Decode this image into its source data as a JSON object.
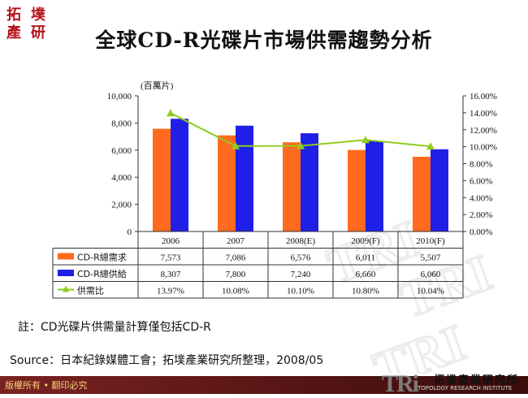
{
  "logo": {
    "chars": [
      "拓",
      "墣",
      "產",
      "研"
    ]
  },
  "title": "全球CD-R光碟片市場供需趨勢分析",
  "watermark": "TRI",
  "note": "註：CD光碟片供需量計算僅包括CD-R",
  "source": "Source：日本紀錄媒體工會；拓墣產業研究所整理，2008/05",
  "footer": {
    "left_text": "版權所有 • 翻印必究",
    "brand_logo": "TRi",
    "brand_name": "拓墣產業研究所",
    "brand_sub": "TOPOLOGY RESEARCH INSTITUTE"
  },
  "colors": {
    "demand": "#ff6a1e",
    "supply": "#1f1fe8",
    "ratio": "#8fcc1e",
    "footer": "#6a1a1a",
    "logo": "#b5121b"
  },
  "chart_data": {
    "type": "bar",
    "unit_label": "(百萬片)",
    "categories": [
      "2006",
      "2007",
      "2008(E)",
      "2009(F)",
      "2010(F)"
    ],
    "series": [
      {
        "name": "CD-R總需求",
        "kind": "bar",
        "values": [
          7573,
          7086,
          6576,
          6011,
          5507
        ],
        "labels": [
          "7,573",
          "7,086",
          "6,576",
          "6,011",
          "5,507"
        ]
      },
      {
        "name": "CD-R總供給",
        "kind": "bar",
        "values": [
          8307,
          7800,
          7240,
          6660,
          6060
        ],
        "labels": [
          "8,307",
          "7,800",
          "7,240",
          "6,660",
          "6,060"
        ]
      },
      {
        "name": "供需比",
        "kind": "line",
        "axis": "right",
        "values": [
          13.97,
          10.08,
          10.1,
          10.8,
          10.04
        ],
        "labels": [
          "13.97%",
          "10.08%",
          "10.10%",
          "10.80%",
          "10.04%"
        ]
      }
    ],
    "y_left": {
      "min": 0,
      "max": 10000,
      "ticks": [
        "0",
        "2,000",
        "4,000",
        "6,000",
        "8,000",
        "10,000"
      ]
    },
    "y_right": {
      "min": 0,
      "max": 16,
      "ticks": [
        "0.00%",
        "2.00%",
        "4.00%",
        "6.00%",
        "8.00%",
        "10.00%",
        "12.00%",
        "14.00%",
        "16.00%"
      ]
    },
    "grid": false,
    "legend": "data-table-below"
  }
}
